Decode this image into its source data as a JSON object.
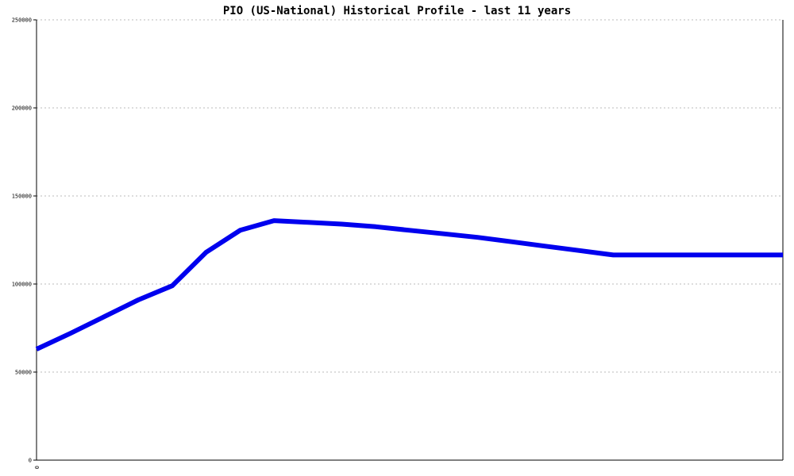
{
  "chart_data": {
    "type": "line",
    "title": "PIO (US-National) Historical Profile - last 11 years",
    "xlabel": "",
    "ylabel": "",
    "ylim": [
      0,
      250000
    ],
    "y_ticks": [
      0,
      50000,
      100000,
      150000,
      200000,
      250000
    ],
    "y_tick_labels": [
      "0",
      "50000",
      "100000",
      "150000",
      "200000",
      "250000"
    ],
    "x_tick_labels": [
      "0"
    ],
    "grid": true,
    "legend": "none",
    "x": [
      0,
      1,
      2,
      3,
      4,
      5,
      6,
      7,
      8,
      9,
      10,
      11,
      12,
      13,
      14,
      15,
      16,
      17,
      18,
      19,
      20,
      21,
      22
    ],
    "series": [
      {
        "color": "#0000ee",
        "values": [
          63000,
          72000,
          81500,
          91000,
          99000,
          118000,
          130500,
          136000,
          135000,
          134000,
          132500,
          130500,
          128500,
          126500,
          124000,
          121500,
          119000,
          116500,
          116500,
          116500,
          116500,
          116500,
          116500
        ]
      }
    ]
  }
}
